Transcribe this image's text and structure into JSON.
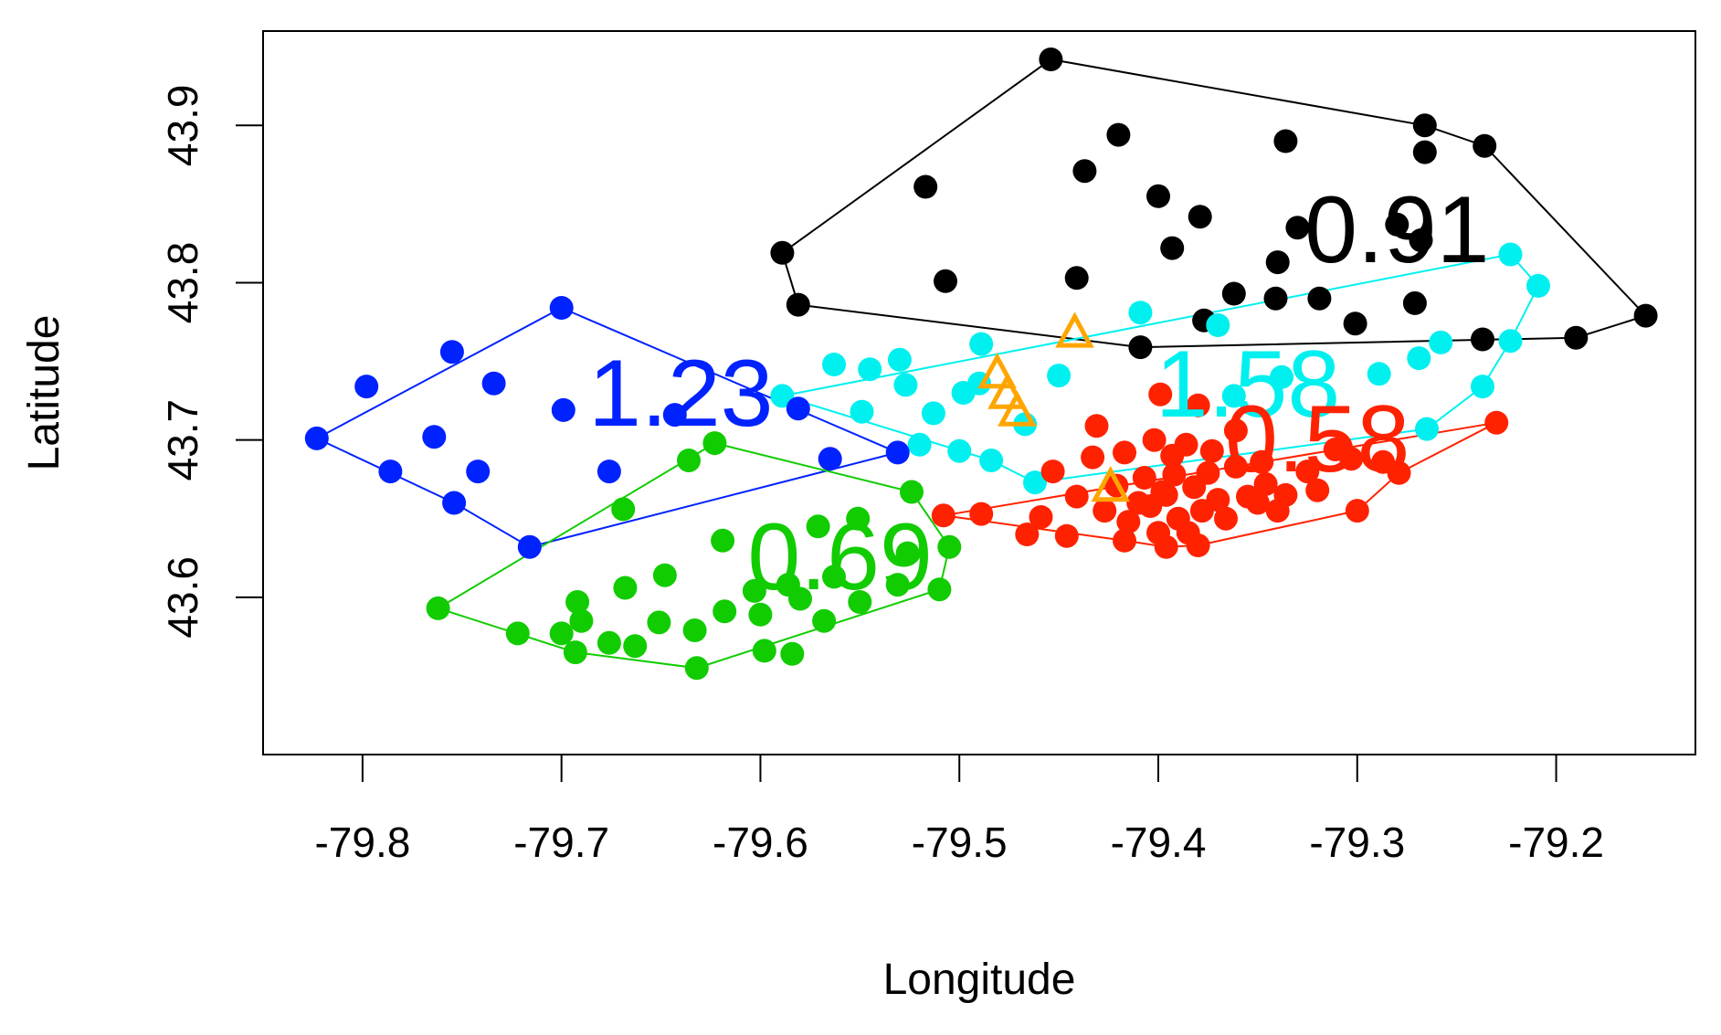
{
  "chart_data": {
    "type": "scatter",
    "title": "",
    "xlabel": "Longitude",
    "ylabel": "Latitude",
    "xlim": [
      -79.85,
      -79.13
    ],
    "ylim": [
      43.5,
      43.96
    ],
    "xticks": [
      -79.8,
      -79.7,
      -79.6,
      -79.5,
      -79.4,
      -79.3,
      -79.2
    ],
    "xtick_labels": [
      "-79.8",
      "-79.7",
      "-79.6",
      "-79.5",
      "-79.4",
      "-79.3",
      "-79.2"
    ],
    "yticks": [
      43.6,
      43.7,
      43.8,
      43.9
    ],
    "ytick_labels": [
      "43.6",
      "43.7",
      "43.8",
      "43.9"
    ],
    "grid": false,
    "series": [
      {
        "color": "#000000",
        "label": "0.91",
        "label_pos": [
          -79.28,
          43.813
        ],
        "hull": [
          [
            -79.454,
            43.942
          ],
          [
            -79.266,
            43.9
          ],
          [
            -79.236,
            43.887
          ],
          [
            -79.155,
            43.779
          ],
          [
            -79.19,
            43.765
          ],
          [
            -79.409,
            43.759
          ],
          [
            -79.581,
            43.786
          ],
          [
            -79.589,
            43.819
          ]
        ],
        "points": [
          [
            -79.454,
            43.942
          ],
          [
            -79.266,
            43.9
          ],
          [
            -79.236,
            43.887
          ],
          [
            -79.155,
            43.779
          ],
          [
            -79.19,
            43.765
          ],
          [
            -79.409,
            43.759
          ],
          [
            -79.581,
            43.786
          ],
          [
            -79.589,
            43.819
          ],
          [
            -79.42,
            43.894
          ],
          [
            -79.336,
            43.89
          ],
          [
            -79.266,
            43.883
          ],
          [
            -79.437,
            43.871
          ],
          [
            -79.379,
            43.842
          ],
          [
            -79.28,
            43.837
          ],
          [
            -79.4,
            43.855
          ],
          [
            -79.517,
            43.861
          ],
          [
            -79.33,
            43.835
          ],
          [
            -79.393,
            43.822
          ],
          [
            -79.268,
            43.827
          ],
          [
            -79.441,
            43.803
          ],
          [
            -79.507,
            43.801
          ],
          [
            -79.362,
            43.793
          ],
          [
            -79.34,
            43.813
          ],
          [
            -79.319,
            43.79
          ],
          [
            -79.301,
            43.774
          ],
          [
            -79.341,
            43.79
          ],
          [
            -79.271,
            43.787
          ],
          [
            -79.377,
            43.776
          ],
          [
            -79.237,
            43.764
          ]
        ]
      },
      {
        "color": "#00f0f0",
        "label": "1.58",
        "label_pos": [
          -79.355,
          43.715
        ],
        "hull": [
          [
            -79.223,
            43.818
          ],
          [
            -79.209,
            43.798
          ],
          [
            -79.223,
            43.763
          ],
          [
            -79.237,
            43.734
          ],
          [
            -79.265,
            43.707
          ],
          [
            -79.462,
            43.673
          ],
          [
            -79.484,
            43.687
          ],
          [
            -79.589,
            43.728
          ]
        ],
        "points": [
          [
            -79.223,
            43.818
          ],
          [
            -79.209,
            43.798
          ],
          [
            -79.223,
            43.763
          ],
          [
            -79.237,
            43.734
          ],
          [
            -79.265,
            43.707
          ],
          [
            -79.462,
            43.673
          ],
          [
            -79.484,
            43.687
          ],
          [
            -79.589,
            43.728
          ],
          [
            -79.409,
            43.781
          ],
          [
            -79.37,
            43.773
          ],
          [
            -79.489,
            43.761
          ],
          [
            -79.53,
            43.751
          ],
          [
            -79.563,
            43.748
          ],
          [
            -79.45,
            43.741
          ],
          [
            -79.49,
            43.736
          ],
          [
            -79.549,
            43.718
          ],
          [
            -79.513,
            43.717
          ],
          [
            -79.527,
            43.735
          ],
          [
            -79.545,
            43.745
          ],
          [
            -79.498,
            43.73
          ],
          [
            -79.467,
            43.71
          ],
          [
            -79.5,
            43.693
          ],
          [
            -79.362,
            43.728
          ],
          [
            -79.269,
            43.752
          ],
          [
            -79.338,
            43.74
          ],
          [
            -79.258,
            43.762
          ],
          [
            -79.52,
            43.697
          ],
          [
            -79.289,
            43.742
          ]
        ]
      },
      {
        "color": "#ff2200",
        "label": "0.58",
        "label_pos": [
          -79.32,
          43.68
        ],
        "hull": [
          [
            -79.23,
            43.711
          ],
          [
            -79.508,
            43.652
          ],
          [
            -79.417,
            43.636
          ],
          [
            -79.396,
            43.632
          ],
          [
            -79.38,
            43.633
          ],
          [
            -79.3,
            43.655
          ],
          [
            -79.279,
            43.679
          ]
        ],
        "points": [
          [
            -79.23,
            43.711
          ],
          [
            -79.508,
            43.652
          ],
          [
            -79.417,
            43.636
          ],
          [
            -79.396,
            43.632
          ],
          [
            -79.38,
            43.633
          ],
          [
            -79.3,
            43.655
          ],
          [
            -79.279,
            43.679
          ],
          [
            -79.399,
            43.729
          ],
          [
            -79.38,
            43.722
          ],
          [
            -79.431,
            43.709
          ],
          [
            -79.402,
            43.7
          ],
          [
            -79.386,
            43.697
          ],
          [
            -79.361,
            43.706
          ],
          [
            -79.417,
            43.692
          ],
          [
            -79.393,
            43.69
          ],
          [
            -79.373,
            43.693
          ],
          [
            -79.348,
            43.686
          ],
          [
            -79.325,
            43.68
          ],
          [
            -79.303,
            43.688
          ],
          [
            -79.287,
            43.686
          ],
          [
            -79.311,
            43.694
          ],
          [
            -79.396,
            43.665
          ],
          [
            -79.382,
            43.67
          ],
          [
            -79.37,
            43.662
          ],
          [
            -79.355,
            43.664
          ],
          [
            -79.346,
            43.672
          ],
          [
            -79.336,
            43.665
          ],
          [
            -79.32,
            43.668
          ],
          [
            -79.407,
            43.676
          ],
          [
            -79.392,
            43.678
          ],
          [
            -79.375,
            43.679
          ],
          [
            -79.361,
            43.683
          ],
          [
            -79.404,
            43.658
          ],
          [
            -79.39,
            43.65
          ],
          [
            -79.378,
            43.655
          ],
          [
            -79.366,
            43.65
          ],
          [
            -79.35,
            43.66
          ],
          [
            -79.34,
            43.655
          ],
          [
            -79.415,
            43.648
          ],
          [
            -79.4,
            43.641
          ],
          [
            -79.385,
            43.641
          ],
          [
            -79.427,
            43.655
          ],
          [
            -79.441,
            43.664
          ],
          [
            -79.459,
            43.651
          ],
          [
            -79.489,
            43.653
          ],
          [
            -79.466,
            43.64
          ],
          [
            -79.446,
            43.639
          ],
          [
            -79.421,
            43.671
          ],
          [
            -79.453,
            43.68
          ],
          [
            -79.41,
            43.66
          ],
          [
            -79.433,
            43.689
          ],
          [
            -79.398,
            43.667
          ]
        ]
      },
      {
        "color": "#0022ff",
        "label": "1.23",
        "label_pos": [
          -79.64,
          43.709
        ],
        "hull": [
          [
            -79.7,
            43.784
          ],
          [
            -79.531,
            43.692
          ],
          [
            -79.716,
            43.632
          ],
          [
            -79.754,
            43.66
          ],
          [
            -79.823,
            43.701
          ]
        ],
        "points": [
          [
            -79.7,
            43.784
          ],
          [
            -79.531,
            43.692
          ],
          [
            -79.716,
            43.632
          ],
          [
            -79.754,
            43.66
          ],
          [
            -79.823,
            43.701
          ],
          [
            -79.755,
            43.756
          ],
          [
            -79.798,
            43.734
          ],
          [
            -79.734,
            43.736
          ],
          [
            -79.699,
            43.719
          ],
          [
            -79.643,
            43.716
          ],
          [
            -79.581,
            43.72
          ],
          [
            -79.565,
            43.688
          ],
          [
            -79.764,
            43.702
          ],
          [
            -79.786,
            43.68
          ],
          [
            -79.742,
            43.68
          ],
          [
            -79.676,
            43.68
          ]
        ]
      },
      {
        "color": "#11cc00",
        "label": "0.69",
        "label_pos": [
          -79.56,
          43.605
        ],
        "hull": [
          [
            -79.623,
            43.698
          ],
          [
            -79.524,
            43.667
          ],
          [
            -79.505,
            43.632
          ],
          [
            -79.51,
            43.605
          ],
          [
            -79.632,
            43.555
          ],
          [
            -79.693,
            43.565
          ],
          [
            -79.762,
            43.593
          ]
        ],
        "points": [
          [
            -79.623,
            43.698
          ],
          [
            -79.524,
            43.667
          ],
          [
            -79.505,
            43.632
          ],
          [
            -79.51,
            43.605
          ],
          [
            -79.632,
            43.555
          ],
          [
            -79.693,
            43.565
          ],
          [
            -79.762,
            43.593
          ],
          [
            -79.636,
            43.687
          ],
          [
            -79.669,
            43.656
          ],
          [
            -79.551,
            43.65
          ],
          [
            -79.571,
            43.645
          ],
          [
            -79.619,
            43.636
          ],
          [
            -79.526,
            43.628
          ],
          [
            -79.563,
            43.613
          ],
          [
            -79.586,
            43.608
          ],
          [
            -79.648,
            43.614
          ],
          [
            -79.668,
            43.606
          ],
          [
            -79.692,
            43.597
          ],
          [
            -79.55,
            43.597
          ],
          [
            -79.58,
            43.599
          ],
          [
            -79.603,
            43.604
          ],
          [
            -79.618,
            43.591
          ],
          [
            -79.633,
            43.579
          ],
          [
            -79.651,
            43.584
          ],
          [
            -79.676,
            43.571
          ],
          [
            -79.722,
            43.577
          ],
          [
            -79.568,
            43.585
          ],
          [
            -79.6,
            43.589
          ],
          [
            -79.584,
            43.564
          ],
          [
            -79.598,
            43.566
          ],
          [
            -79.663,
            43.569
          ],
          [
            -79.69,
            43.585
          ],
          [
            -79.531,
            43.608
          ],
          [
            -79.7,
            43.577
          ]
        ]
      },
      {
        "color": "#ffa500",
        "marker": "triangle",
        "points": [
          [
            -79.442,
            43.768
          ],
          [
            -79.481,
            43.742
          ],
          [
            -79.476,
            43.729
          ],
          [
            -79.471,
            43.718
          ],
          [
            -79.424,
            43.67
          ]
        ]
      }
    ]
  }
}
